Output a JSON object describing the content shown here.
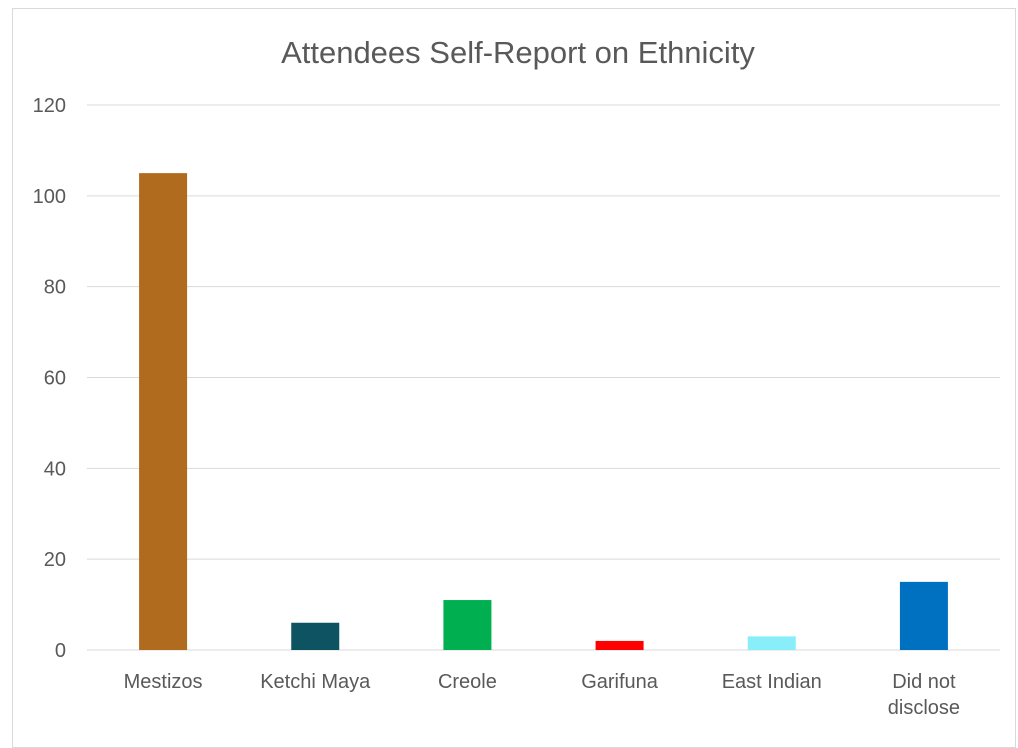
{
  "chart_data": {
    "type": "bar",
    "title": "Attendees Self-Report on Ethnicity",
    "xlabel": "",
    "ylabel": "",
    "categories": [
      "Mestizos",
      "Ketchi Maya",
      "Creole",
      "Garifuna",
      "East Indian",
      "Did not disclose"
    ],
    "category_lines": [
      [
        "Mestizos"
      ],
      [
        "Ketchi Maya"
      ],
      [
        "Creole"
      ],
      [
        "Garifuna"
      ],
      [
        "East Indian"
      ],
      [
        "Did not",
        "disclose"
      ]
    ],
    "values": [
      105,
      6,
      11,
      2,
      3,
      15
    ],
    "colors": [
      "#b06b1e",
      "#0d5361",
      "#00b050",
      "#ff0000",
      "#87eefa",
      "#0070c0"
    ],
    "ylim": [
      0,
      120
    ],
    "yticks": [
      0,
      20,
      40,
      60,
      80,
      100,
      120
    ],
    "grid": true,
    "legend": "none"
  }
}
